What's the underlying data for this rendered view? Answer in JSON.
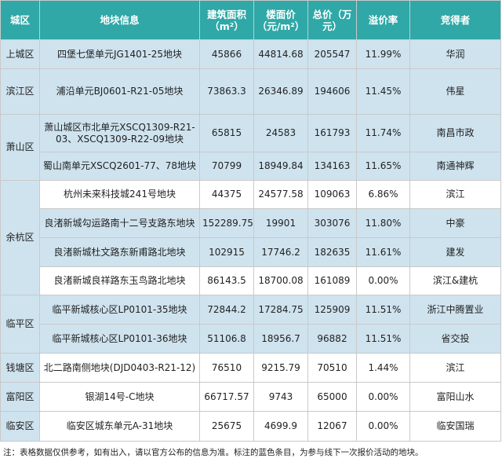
{
  "headers": {
    "district": "城区",
    "parcel": "地块信息",
    "area": "建筑面积（m²）",
    "floor_price": "楼面价（元/m²）",
    "total_price": "总价（万元）",
    "premium": "溢价率",
    "winner": "竞得者"
  },
  "rows": [
    {
      "district": "上城区",
      "parcel": "四堡七堡单元JG1401-25地块",
      "area": "45866",
      "floor_price": "44814.68",
      "total_price": "205547",
      "premium": "11.99%",
      "winner": "华润"
    },
    {
      "district": "滨江区",
      "parcel": "浦沿单元BJ0601-R21-05地块",
      "area": "73863.3",
      "floor_price": "26346.89",
      "total_price": "194606",
      "premium": "11.45%",
      "winner": "伟星"
    },
    {
      "district": "萧山区",
      "parcel": "萧山城区市北单元XSCQ1309-R21-03、XSCQ1309-R22-09地块",
      "area": "65815",
      "floor_price": "24583",
      "total_price": "161793",
      "premium": "11.74%",
      "winner": "南昌市政"
    },
    {
      "district": "",
      "parcel": "蜀山南单元XSCQ2601-77、78地块",
      "area": "70799",
      "floor_price": "18949.84",
      "total_price": "134163",
      "premium": "11.65%",
      "winner": "南通神辉"
    },
    {
      "district": "余杭区",
      "parcel": "杭州未来科技城241号地块",
      "area": "44375",
      "floor_price": "24577.58",
      "total_price": "109063",
      "premium": "6.86%",
      "winner": "滨江"
    },
    {
      "district": "",
      "parcel": "良渚新城勾运路南十二号支路东地块",
      "area": "152289.75",
      "floor_price": "19901",
      "total_price": "303076",
      "premium": "11.80%",
      "winner": "中豪"
    },
    {
      "district": "",
      "parcel": "良渚新城杜文路东新甫路北地块",
      "area": "102915",
      "floor_price": "17746.2",
      "total_price": "182635",
      "premium": "11.61%",
      "winner": "建发"
    },
    {
      "district": "",
      "parcel": "良渚新城良祥路东玉鸟路北地块",
      "area": "86143.5",
      "floor_price": "18700.08",
      "total_price": "161089",
      "premium": "0.00%",
      "winner": "滨江&建杭"
    },
    {
      "district": "临平区",
      "parcel": "临平新城核心区LP0101-35地块",
      "area": "72844.2",
      "floor_price": "17284.75",
      "total_price": "125909",
      "premium": "11.51%",
      "winner": "浙江中腾置业"
    },
    {
      "district": "",
      "parcel": "临平新城核心区LP0101-36地块",
      "area": "51106.8",
      "floor_price": "18956.7",
      "total_price": "96882",
      "premium": "11.51%",
      "winner": "省交投"
    },
    {
      "district": "钱塘区",
      "parcel": "北二路南侧地块(DJD0403-R21-12)",
      "area": "76510",
      "floor_price": "9215.79",
      "total_price": "70510",
      "premium": "1.44%",
      "winner": "滨江"
    },
    {
      "district": "富阳区",
      "parcel": "银湖14号-C地块",
      "area": "66717.57",
      "floor_price": "9743",
      "total_price": "65000",
      "premium": "0.00%",
      "winner": "富阳山水"
    },
    {
      "district": "临安区",
      "parcel": "临安区城东单元A-31地块",
      "area": "25675",
      "floor_price": "4699.9",
      "total_price": "12067",
      "premium": "0.00%",
      "winner": "临安国瑞"
    }
  ],
  "note": "注：表格数据仅供参考，如有出入，请以官方公布的信息为准。标注的蓝色条目，为参与线下一次报价活动的地块。",
  "colors": {
    "header_bg": "#2fa8a7",
    "highlight_bg": "#cfe3ef",
    "border": "#c9c9c9"
  }
}
